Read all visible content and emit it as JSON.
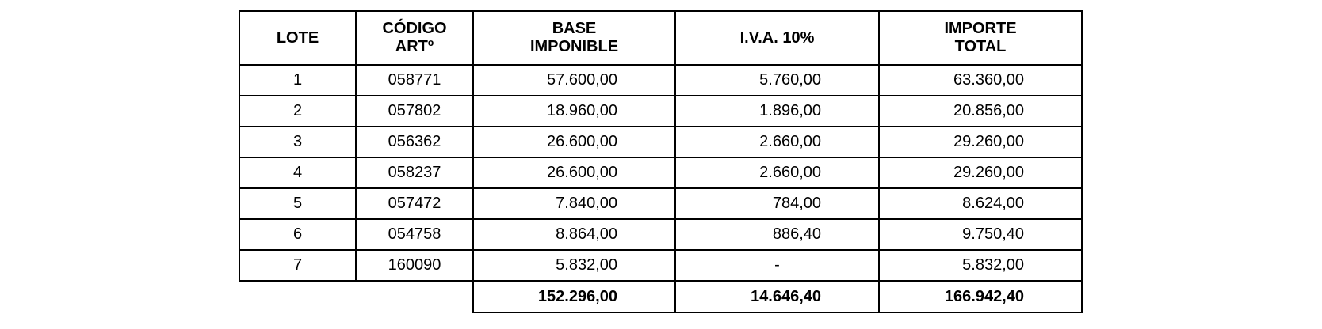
{
  "headers": [
    "LOTE",
    "CÓDIGO\nARTº",
    "BASE\nIMPONIBLE",
    "I.V.A. 10%",
    "IMPORTE\nTOTAL"
  ],
  "rows": [
    [
      "1",
      "058771",
      "57.600,00",
      "5.760,00",
      "63.360,00"
    ],
    [
      "2",
      "057802",
      "18.960,00",
      "1.896,00",
      "20.856,00"
    ],
    [
      "3",
      "056362",
      "26.600,00",
      "2.660,00",
      "29.260,00"
    ],
    [
      "4",
      "058237",
      "26.600,00",
      "2.660,00",
      "29.260,00"
    ],
    [
      "5",
      "057472",
      "7.840,00",
      "784,00",
      "8.624,00"
    ],
    [
      "6",
      "054758",
      "8.864,00",
      "886,40",
      "9.750,40"
    ],
    [
      "7",
      "160090",
      "5.832,00",
      "-",
      "5.832,00"
    ]
  ],
  "totals": {
    "base": "152.296,00",
    "iva": "14.646,40",
    "total": "166.942,40"
  }
}
